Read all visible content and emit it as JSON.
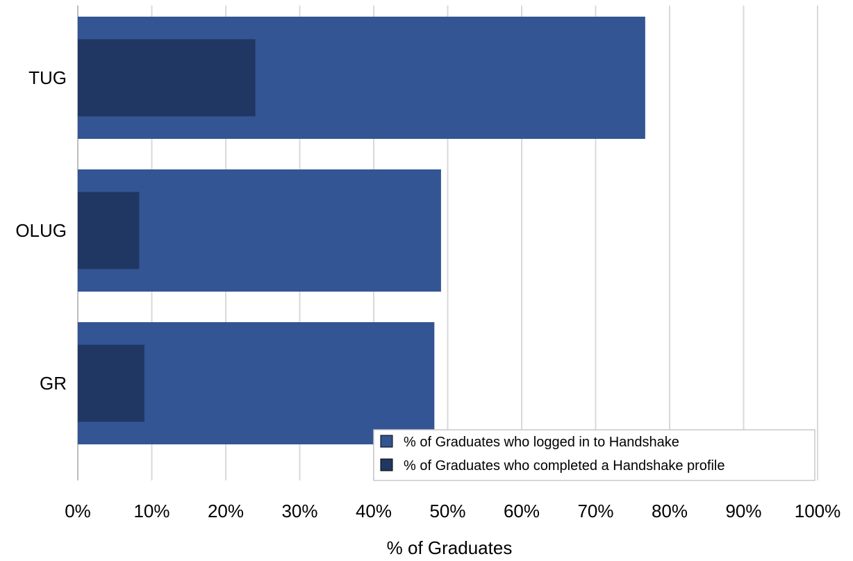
{
  "chart_data": {
    "type": "bar",
    "orientation": "horizontal",
    "layout": "overlapping-nested",
    "categories": [
      "TUG",
      "OLUG",
      "GR"
    ],
    "series": [
      {
        "name": "% of Graduates who logged in to Handshake",
        "values": [
          76.7,
          49.1,
          48.2
        ],
        "color": "#335593"
      },
      {
        "name": "% of Graduates who completed a Handshake profile",
        "values": [
          24.0,
          8.3,
          9.0
        ],
        "color": "#203763"
      }
    ],
    "xlabel": "% of Graduates",
    "xlim": [
      0,
      100
    ],
    "xticks": [
      0,
      10,
      20,
      30,
      40,
      50,
      60,
      70,
      80,
      90,
      100
    ],
    "xtick_labels": [
      "0%",
      "10%",
      "20%",
      "30%",
      "40%",
      "50%",
      "60%",
      "70%",
      "80%",
      "90%",
      "100%"
    ],
    "grid": "vertical",
    "legend_position": "bottom-right"
  }
}
